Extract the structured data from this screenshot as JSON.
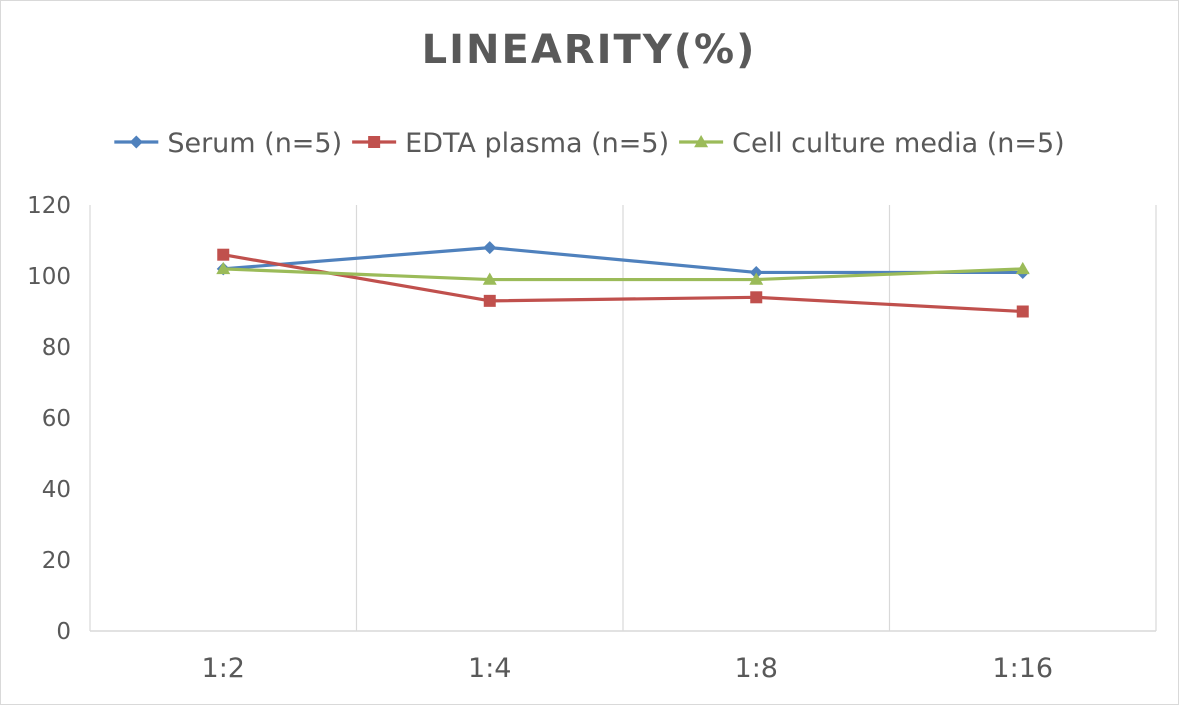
{
  "chart_data": {
    "type": "line",
    "title": "LINEARITY(%)",
    "categories": [
      "1:2",
      "1:4",
      "1:8",
      "1:16"
    ],
    "ylim": [
      0,
      120
    ],
    "yticks": [
      0,
      20,
      40,
      60,
      80,
      100,
      120
    ],
    "grid": "vertical",
    "legend_position": "top",
    "series": [
      {
        "name": "Serum (n=5)",
        "values": [
          102,
          108,
          101,
          101
        ],
        "color": "#4f81bd",
        "marker": "diamond"
      },
      {
        "name": "EDTA plasma (n=5)",
        "values": [
          106,
          93,
          94,
          90
        ],
        "color": "#c0504d",
        "marker": "square"
      },
      {
        "name": "Cell culture media (n=5)",
        "values": [
          102,
          99,
          99,
          102
        ],
        "color": "#9bbb59",
        "marker": "triangle"
      }
    ],
    "xlabel": "",
    "ylabel": ""
  }
}
